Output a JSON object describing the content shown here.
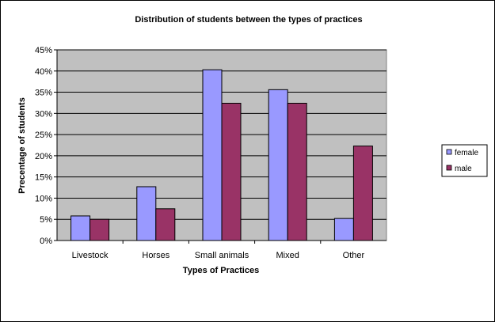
{
  "chart_data": {
    "type": "bar",
    "title": "Distribution of students between the types of practices",
    "xlabel": "Types of Practices",
    "ylabel": "Precentage of students",
    "categories": [
      "Livestock",
      "Horses",
      "Small animals",
      "Mixed",
      "Other"
    ],
    "series": [
      {
        "name": "female",
        "values": [
          5.8,
          12.7,
          40.3,
          35.6,
          5.2
        ],
        "color": "#9999FF"
      },
      {
        "name": "male",
        "values": [
          5.0,
          7.5,
          32.4,
          32.4,
          22.3
        ],
        "color": "#993366"
      }
    ],
    "ylim": [
      0,
      45
    ],
    "yticks": [
      "0%",
      "5%",
      "10%",
      "15%",
      "20%",
      "25%",
      "30%",
      "35%",
      "40%",
      "45%"
    ],
    "grid": true,
    "plot_background": "#C0C0C0",
    "legend_position": "right"
  }
}
